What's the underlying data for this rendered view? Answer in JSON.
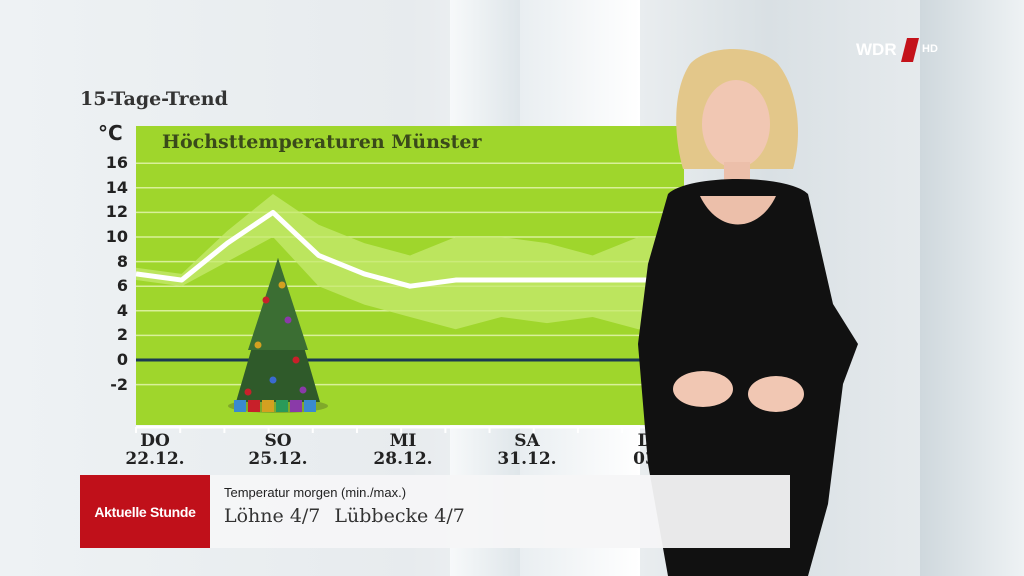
{
  "header": {
    "trend_title": "15-Tage-Trend"
  },
  "logo": {
    "name": "WDR",
    "suffix": "HD"
  },
  "ticker": {
    "brand": "Aktuelle Stunde",
    "subtitle": "Temperatur morgen (min./max.)",
    "entries": [
      "Löhne 4/7",
      "Lübbecke 4/7"
    ]
  },
  "colors": {
    "chart_bg": "#9fd62c",
    "band": "#c6ea6f",
    "line": "#ffffff",
    "zero_line": "#1a3a52",
    "brand_red": "#c0101a"
  },
  "chart_data": {
    "type": "line",
    "title": "Höchsttemperaturen Münster",
    "unit": "°C",
    "ylim": [
      -4,
      17
    ],
    "yticks": [
      16,
      14,
      12,
      10,
      8,
      6,
      4,
      2,
      0,
      -2
    ],
    "x_labels": [
      {
        "day": "DO",
        "date": "22.12."
      },
      {
        "day": "SO",
        "date": "25.12."
      },
      {
        "day": "MI",
        "date": "28.12."
      },
      {
        "day": "SA",
        "date": "31.12."
      },
      {
        "day": "D",
        "date": "03"
      }
    ],
    "series": [
      {
        "values": [
          7,
          6.5,
          9.5,
          12,
          8.5,
          7,
          6,
          6.5,
          6.5,
          6.5,
          6.5,
          6.5,
          6.5
        ]
      }
    ],
    "band_upper": [
      7.5,
      7,
      10.5,
      13.5,
      11,
      9.5,
      8.5,
      10,
      10,
      9.5,
      8.5,
      10,
      10
    ],
    "band_lower": [
      6.5,
      6,
      8,
      10,
      6,
      4.5,
      3.5,
      2.5,
      3.5,
      3,
      3.5,
      2.5,
      2.5
    ],
    "grid": true
  }
}
